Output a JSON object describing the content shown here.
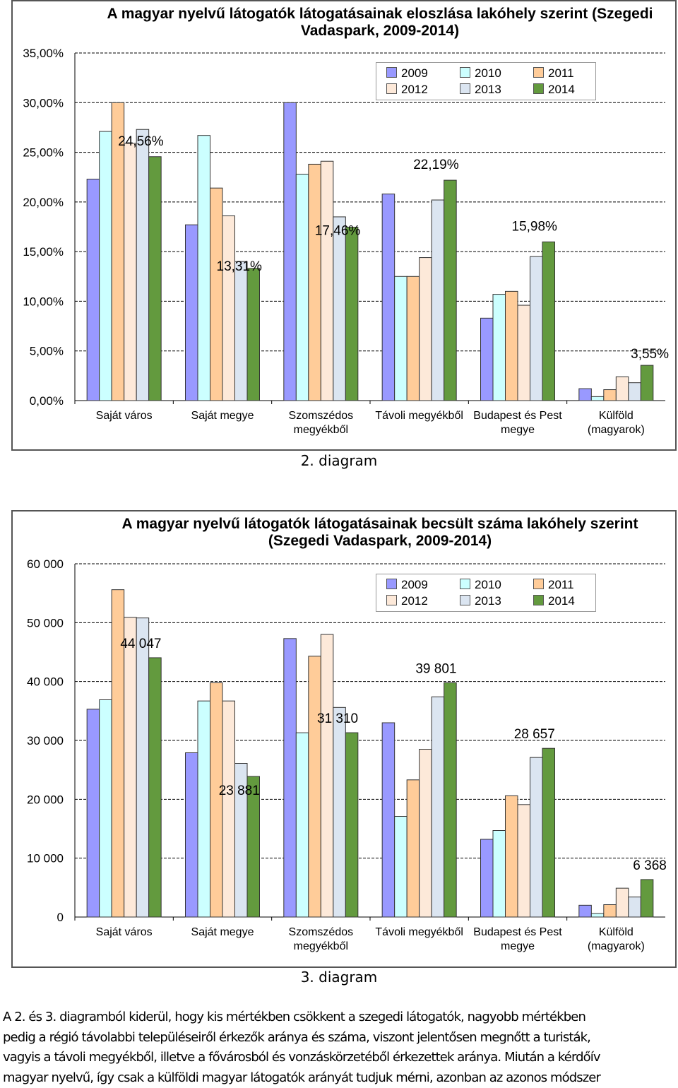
{
  "chart_data": [
    {
      "type": "bar",
      "title": "A magyar nyelvű látogatók látogatásainak eloszlása lakóhely szerint (Szegedi Vadaspark, 2009-2014)",
      "categories": [
        "Saját város",
        "Saját megye",
        "Szomszédos megyékből",
        "Távoli megyékből",
        "Budapest és Pest megye",
        "Külföld (magyarok)"
      ],
      "category_lines": [
        [
          "Saját város"
        ],
        [
          "Saját megye"
        ],
        [
          "Szomszédos",
          "megyékből"
        ],
        [
          "Távoli megyékből"
        ],
        [
          "Budapest és Pest",
          "megye"
        ],
        [
          "Külföld",
          "(magyarok)"
        ]
      ],
      "series": [
        {
          "name": "2009",
          "values": [
            22.3,
            17.7,
            30.0,
            20.8,
            8.3,
            1.2
          ]
        },
        {
          "name": "2010",
          "values": [
            27.1,
            26.7,
            22.8,
            12.5,
            10.7,
            0.4
          ]
        },
        {
          "name": "2011",
          "values": [
            30.0,
            21.4,
            23.8,
            12.5,
            11.0,
            1.1
          ]
        },
        {
          "name": "2012",
          "values": [
            25.9,
            18.6,
            24.1,
            14.4,
            9.6,
            2.4
          ]
        },
        {
          "name": "2013",
          "values": [
            27.3,
            14.0,
            18.5,
            20.2,
            14.5,
            1.8
          ]
        },
        {
          "name": "2014",
          "values": [
            24.56,
            13.31,
            17.46,
            22.19,
            15.98,
            3.55
          ]
        }
      ],
      "data_labels": [
        "24,56%",
        "13,31%",
        "17,46%",
        "22,19%",
        "15,98%",
        "3,55%"
      ],
      "ylim": [
        0,
        35
      ],
      "yticks": [
        0,
        5,
        10,
        15,
        20,
        25,
        30,
        35
      ],
      "ytick_labels": [
        "0,00%",
        "5,00%",
        "10,00%",
        "15,00%",
        "20,00%",
        "25,00%",
        "30,00%",
        "35,00%"
      ],
      "xlabel": "",
      "ylabel": "",
      "grid": true,
      "legend_position": "top-right",
      "caption": "2. diagram"
    },
    {
      "type": "bar",
      "title": "A magyar nyelvű látogatók látogatásainak becsült száma lakóhely szerint (Szegedi Vadaspark, 2009-2014)",
      "categories": [
        "Saját város",
        "Saját megye",
        "Szomszédos megyékből",
        "Távoli megyékből",
        "Budapest és Pest megye",
        "Külföld (magyarok)"
      ],
      "category_lines": [
        [
          "Saját város"
        ],
        [
          "Saját megye"
        ],
        [
          "Szomszédos",
          "megyékből"
        ],
        [
          "Távoli megyékből"
        ],
        [
          "Budapest és Pest",
          "megye"
        ],
        [
          "Külföld",
          "(magyarok)"
        ]
      ],
      "series": [
        {
          "name": "2009",
          "values": [
            35300,
            27900,
            47300,
            33000,
            13200,
            2000
          ]
        },
        {
          "name": "2010",
          "values": [
            36900,
            36700,
            31300,
            17100,
            14700,
            600
          ]
        },
        {
          "name": "2011",
          "values": [
            55600,
            39800,
            44300,
            23300,
            20600,
            2100
          ]
        },
        {
          "name": "2012",
          "values": [
            50900,
            36700,
            48000,
            28500,
            19100,
            4900
          ]
        },
        {
          "name": "2013",
          "values": [
            50800,
            26100,
            35600,
            37400,
            27100,
            3400
          ]
        },
        {
          "name": "2014",
          "values": [
            44047,
            23881,
            31310,
            39801,
            28657,
            6368
          ]
        }
      ],
      "data_labels": [
        "44 047",
        "23 881",
        "31 310",
        "39 801",
        "28 657",
        "6 368"
      ],
      "ylim": [
        0,
        60000
      ],
      "yticks": [
        0,
        10000,
        20000,
        30000,
        40000,
        50000,
        60000
      ],
      "ytick_labels": [
        "0",
        "10 000",
        "20 000",
        "30 000",
        "40 000",
        "50 000",
        "60 000"
      ],
      "xlabel": "",
      "ylabel": "",
      "grid": true,
      "legend_position": "top-right",
      "caption": "3. diagram"
    }
  ],
  "legend": {
    "entries": [
      "2009",
      "2010",
      "2011",
      "2012",
      "2013",
      "2014"
    ],
    "colors": [
      "#9999ff",
      "#ccffff",
      "#ffcc99",
      "#fde9d9",
      "#dbe5f1",
      "#639a3e"
    ]
  },
  "paragraph": {
    "lines": [
      "A 2. és 3. diagramból kiderül, hogy kis mértékben csökkent a szegedi látogatók, nagyobb mértékben",
      "pedig a régió távolabbi településeiről érkezők aránya és száma, viszont jelentősen megnőtt a turisták,",
      "vagyis a távoli megyékből, illetve a fővárosból és vonzáskörzetéből érkezettek aránya. Miután a kérdőív",
      "magyar nyelvű, így csak a külföldi magyar látogatók arányát tudjuk mérni, azonban az azonos módszer"
    ]
  }
}
